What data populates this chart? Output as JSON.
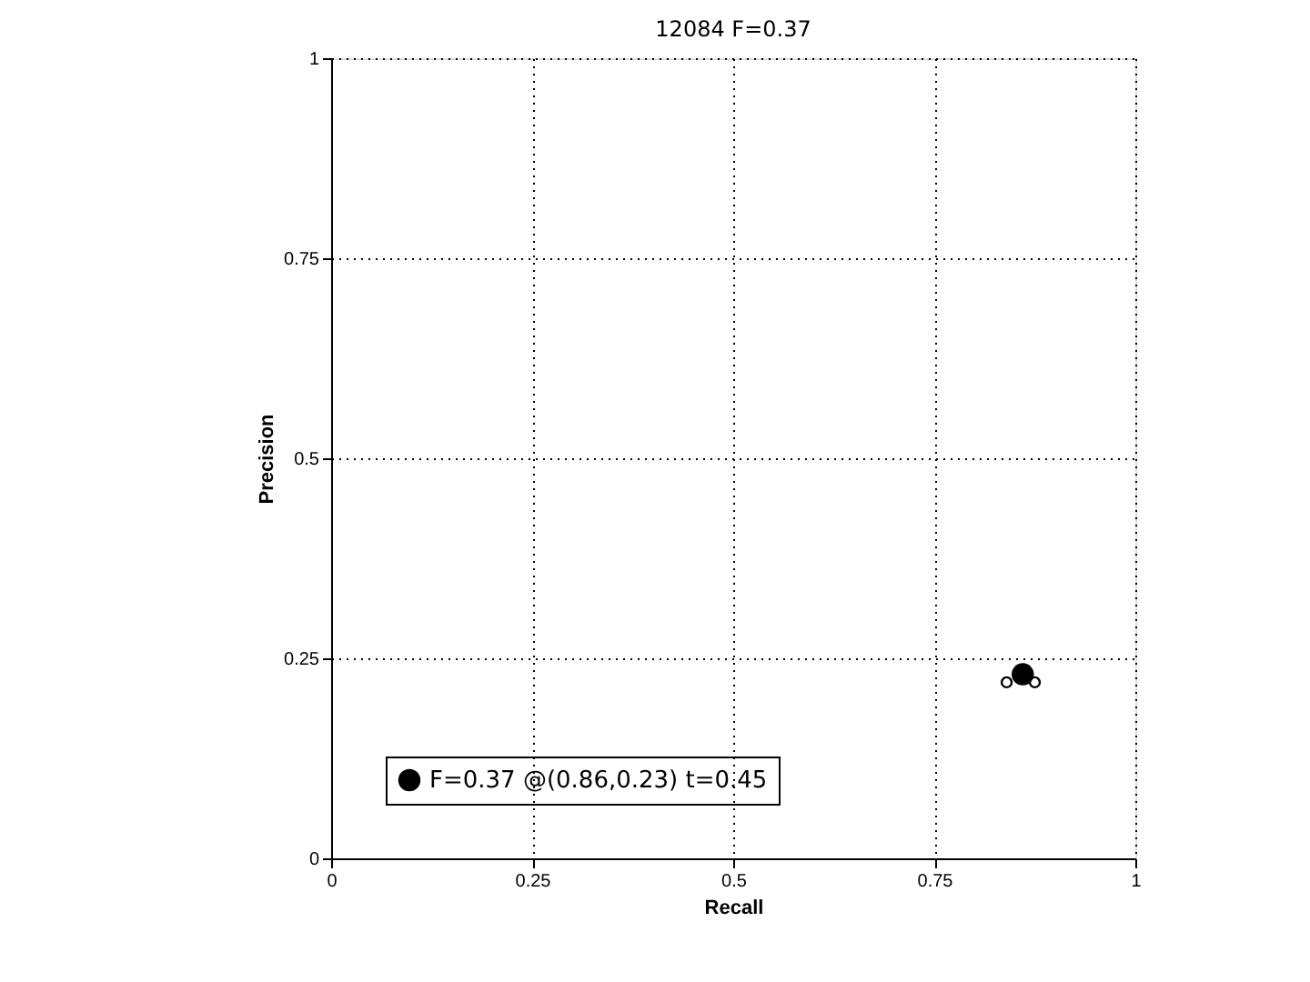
{
  "chart_data": {
    "type": "scatter",
    "title": "12084 F=0.37",
    "xlabel": "Recall",
    "ylabel": "Precision",
    "xlim": [
      0,
      1
    ],
    "ylim": [
      0,
      1
    ],
    "xticks": [
      0,
      0.25,
      0.5,
      0.75,
      1
    ],
    "yticks": [
      0,
      0.25,
      0.5,
      0.75,
      1
    ],
    "grid": true,
    "legend": "bottom left",
    "series": [
      {
        "marker": "circle",
        "color": "#000000",
        "x": [
          0.84,
          0.875
        ],
        "values": [
          0.22,
          0.22
        ]
      },
      {
        "name": "F=0.37 @(0.86,0.23) t=0.45",
        "marker": "circle",
        "color": "#000000",
        "x": [
          0.86
        ],
        "values": [
          0.23
        ]
      }
    ]
  }
}
